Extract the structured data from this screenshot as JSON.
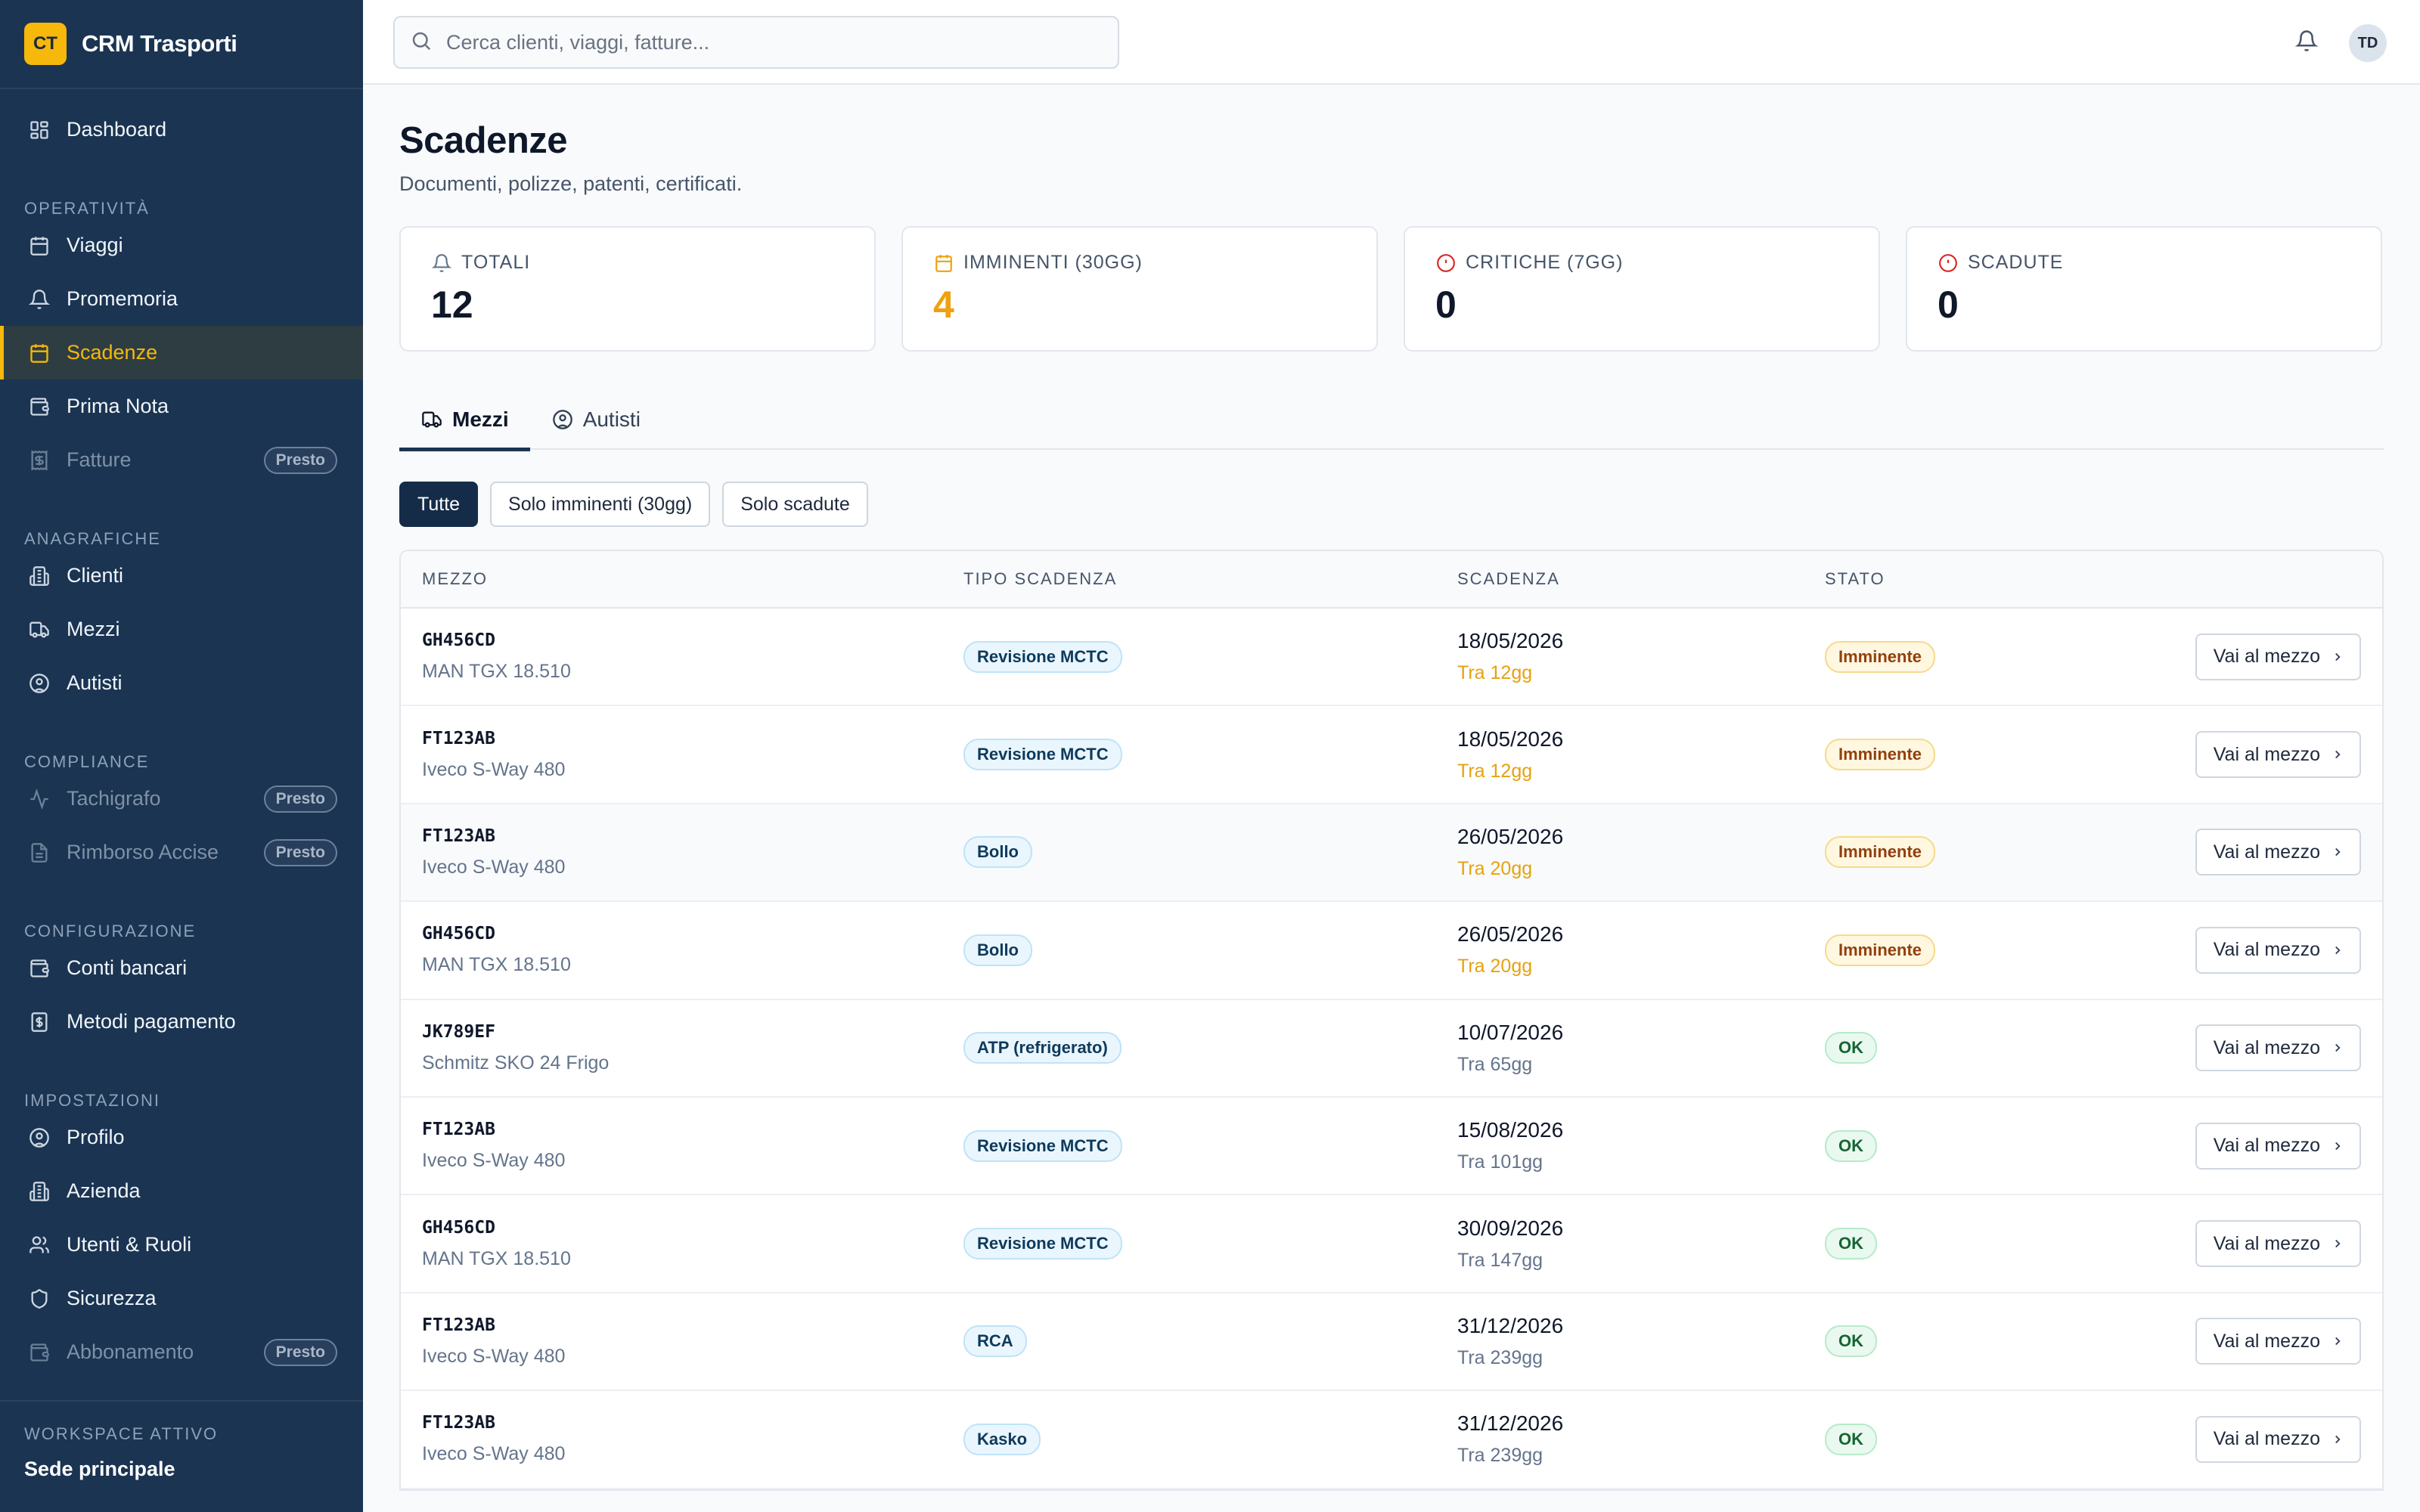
{
  "brand": {
    "logo": "CT",
    "name": "CRM Trasporti",
    "accent": "#f5b80b",
    "sidebar_bg": "#1a3452"
  },
  "nav": {
    "dashboard": "Dashboard",
    "sections": {
      "operativita": "OPERATIVITÀ",
      "anagrafiche": "ANAGRAFICHE",
      "compliance": "COMPLIANCE",
      "configurazione": "CONFIGURAZIONE",
      "impostazioni": "IMPOSTAZIONI"
    },
    "items": {
      "viaggi": "Viaggi",
      "promemoria": "Promemoria",
      "scadenze": "Scadenze",
      "prima_nota": "Prima Nota",
      "fatture": "Fatture",
      "clienti": "Clienti",
      "mezzi": "Mezzi",
      "autisti": "Autisti",
      "tachigrafo": "Tachigrafo",
      "rimborso_accise": "Rimborso Accise",
      "conti_bancari": "Conti bancari",
      "metodi_pagamento": "Metodi pagamento",
      "profilo": "Profilo",
      "azienda": "Azienda",
      "utenti_ruoli": "Utenti & Ruoli",
      "sicurezza": "Sicurezza",
      "abbonamento": "Abbonamento"
    },
    "presto": "Presto"
  },
  "workspace": {
    "label": "WORKSPACE ATTIVO",
    "name": "Sede principale"
  },
  "topbar": {
    "search_placeholder": "Cerca clienti, viaggi, fatture...",
    "avatar": "TD"
  },
  "page": {
    "title": "Scadenze",
    "subtitle": "Documenti, polizze, patenti, certificati."
  },
  "stats": {
    "totali": {
      "label": "TOTALI",
      "value": "12"
    },
    "imminenti": {
      "label": "IMMINENTI (30GG)",
      "value": "4"
    },
    "critiche": {
      "label": "CRITICHE (7GG)",
      "value": "0"
    },
    "scadute": {
      "label": "SCADUTE",
      "value": "0"
    }
  },
  "tabs": {
    "mezzi": "Mezzi",
    "autisti": "Autisti"
  },
  "filters": {
    "tutte": "Tutte",
    "imminenti": "Solo imminenti (30gg)",
    "scadute": "Solo scadute"
  },
  "table": {
    "headers": {
      "mezzo": "MEZZO",
      "tipo": "TIPO SCADENZA",
      "scadenza": "SCADENZA",
      "stato": "STATO"
    },
    "action_label": "Vai al mezzo",
    "rows": [
      {
        "plate": "GH456CD",
        "model": "MAN TGX 18.510",
        "type": "Revisione MCTC",
        "date": "18/05/2026",
        "days": "Tra 12gg",
        "state": "Imminente"
      },
      {
        "plate": "FT123AB",
        "model": "Iveco S-Way 480",
        "type": "Revisione MCTC",
        "date": "18/05/2026",
        "days": "Tra 12gg",
        "state": "Imminente"
      },
      {
        "plate": "FT123AB",
        "model": "Iveco S-Way 480",
        "type": "Bollo",
        "date": "26/05/2026",
        "days": "Tra 20gg",
        "state": "Imminente"
      },
      {
        "plate": "GH456CD",
        "model": "MAN TGX 18.510",
        "type": "Bollo",
        "date": "26/05/2026",
        "days": "Tra 20gg",
        "state": "Imminente"
      },
      {
        "plate": "JK789EF",
        "model": "Schmitz SKO 24 Frigo",
        "type": "ATP (refrigerato)",
        "date": "10/07/2026",
        "days": "Tra 65gg",
        "state": "OK"
      },
      {
        "plate": "FT123AB",
        "model": "Iveco S-Way 480",
        "type": "Revisione MCTC",
        "date": "15/08/2026",
        "days": "Tra 101gg",
        "state": "OK"
      },
      {
        "plate": "GH456CD",
        "model": "MAN TGX 18.510",
        "type": "Revisione MCTC",
        "date": "30/09/2026",
        "days": "Tra 147gg",
        "state": "OK"
      },
      {
        "plate": "FT123AB",
        "model": "Iveco S-Way 480",
        "type": "RCA",
        "date": "31/12/2026",
        "days": "Tra 239gg",
        "state": "OK"
      },
      {
        "plate": "FT123AB",
        "model": "Iveco S-Way 480",
        "type": "Kasko",
        "date": "31/12/2026",
        "days": "Tra 239gg",
        "state": "OK"
      }
    ]
  }
}
